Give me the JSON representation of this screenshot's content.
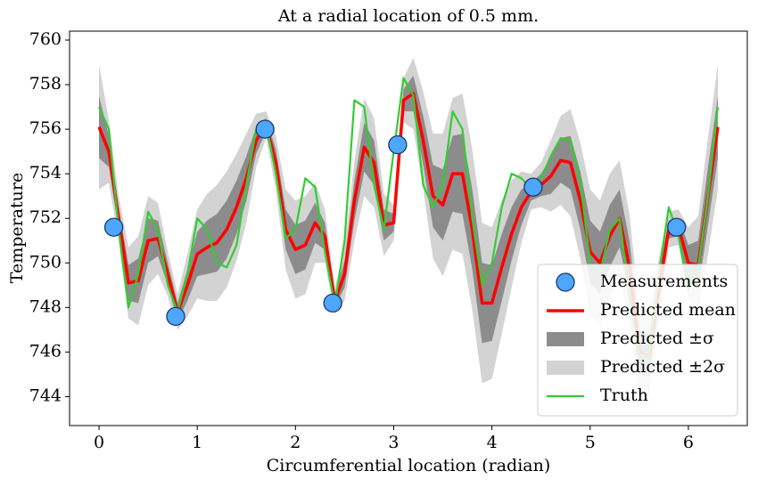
{
  "chart_data": {
    "type": "line",
    "title": "At a radial location of 0.5 mm.",
    "xlabel": "Circumferential location (radian)",
    "ylabel": "Temperature",
    "x": [
      0,
      0.1,
      0.2,
      0.3,
      0.4,
      0.5,
      0.6,
      0.7,
      0.8,
      0.9,
      1.0,
      1.1,
      1.2,
      1.3,
      1.4,
      1.5,
      1.6,
      1.7,
      1.8,
      1.9,
      2.0,
      2.1,
      2.2,
      2.3,
      2.4,
      2.5,
      2.6,
      2.7,
      2.8,
      2.9,
      3.0,
      3.1,
      3.2,
      3.3,
      3.4,
      3.5,
      3.6,
      3.7,
      3.8,
      3.9,
      4.0,
      4.1,
      4.2,
      4.3,
      4.4,
      4.5,
      4.6,
      4.7,
      4.8,
      4.9,
      5.0,
      5.1,
      5.2,
      5.3,
      5.4,
      5.5,
      5.6,
      5.7,
      5.8,
      5.9,
      6.0,
      6.1,
      6.2,
      6.3
    ],
    "series": [
      {
        "name": "Measurements",
        "kind": "scatter",
        "color": "#4da6ff",
        "x": [
          0.15,
          0.78,
          1.69,
          2.38,
          3.04,
          4.42,
          5.88
        ],
        "values": [
          751.6,
          747.6,
          756.0,
          748.2,
          755.3,
          753.4,
          751.6
        ]
      },
      {
        "name": "Predicted mean",
        "kind": "line",
        "color": "#ff0000",
        "values": [
          756.1,
          755,
          752,
          749.1,
          749.2,
          751,
          751.1,
          749.5,
          747.8,
          749,
          750.4,
          750.7,
          750.9,
          751.5,
          752.5,
          753.8,
          755.5,
          756.2,
          754.5,
          751.5,
          750.6,
          750.8,
          751.8,
          751.2,
          748.3,
          749.5,
          752.8,
          755.2,
          754.5,
          751.7,
          751.8,
          757.3,
          757.6,
          755.5,
          753,
          752.6,
          754,
          754,
          751.5,
          748.2,
          748.2,
          749.8,
          751.3,
          752.5,
          753.2,
          753.5,
          753.9,
          754.6,
          754.5,
          752.8,
          750.5,
          750,
          751.2,
          752,
          749.8,
          746,
          745.8,
          748.8,
          751.5,
          751.6,
          750,
          749.9,
          753,
          756.1
        ]
      },
      {
        "name": "Predicted ±σ",
        "kind": "band",
        "color": "#8c8c8c",
        "values": [
          1.4,
          0.7,
          0.5,
          0.8,
          1.0,
          1.0,
          0.8,
          0.5,
          0.4,
          0.7,
          1.0,
          1.2,
          1.3,
          1.3,
          1.2,
          1.0,
          0.6,
          0.3,
          0.6,
          0.9,
          1.1,
          1.1,
          0.9,
          0.6,
          0.3,
          0.6,
          0.9,
          1.1,
          1.0,
          0.7,
          0.4,
          0.5,
          0.8,
          1.1,
          1.4,
          1.6,
          1.7,
          1.8,
          1.8,
          1.8,
          1.7,
          1.5,
          1.2,
          0.8,
          0.4,
          0.5,
          0.8,
          1.0,
          1.2,
          1.3,
          1.4,
          1.4,
          1.4,
          1.3,
          1.2,
          1.0,
          0.9,
          0.7,
          0.4,
          0.4,
          0.8,
          1.1,
          1.3,
          1.4
        ]
      },
      {
        "name": "Predicted ±2σ",
        "kind": "band",
        "color": "#d3d3d3",
        "values": [
          2.8,
          1.4,
          1.0,
          1.6,
          2.0,
          2.0,
          1.6,
          1.0,
          0.8,
          1.4,
          2.0,
          2.4,
          2.6,
          2.6,
          2.4,
          2.0,
          1.2,
          0.6,
          1.2,
          1.8,
          2.2,
          2.2,
          1.8,
          1.2,
          0.6,
          1.2,
          1.8,
          2.2,
          2.0,
          1.4,
          0.8,
          1.0,
          1.6,
          2.2,
          2.8,
          3.2,
          3.4,
          3.6,
          3.6,
          3.6,
          3.4,
          3.0,
          2.4,
          1.6,
          0.8,
          1.0,
          1.6,
          2.0,
          2.4,
          2.6,
          2.8,
          2.8,
          2.8,
          2.6,
          2.4,
          2.0,
          1.8,
          1.4,
          0.8,
          0.8,
          1.6,
          2.2,
          2.6,
          2.8
        ]
      },
      {
        "name": "Truth",
        "kind": "line",
        "color": "#33cc33",
        "values": [
          757,
          756,
          751.5,
          748,
          749.5,
          752.3,
          751.5,
          749,
          747.8,
          749.5,
          752,
          751.5,
          750,
          749.8,
          750.8,
          753.5,
          756,
          756.3,
          754,
          751.1,
          751.5,
          753.8,
          753.4,
          750.5,
          748.1,
          751,
          757.3,
          757,
          753.5,
          751.5,
          755,
          758.3,
          757.5,
          753.5,
          752.5,
          753.5,
          756.8,
          756,
          752,
          749,
          750,
          752.5,
          754,
          753.8,
          753.3,
          753.8,
          754.8,
          755.6,
          755.5,
          753.7,
          750,
          749.5,
          751.5,
          752,
          748.5,
          745.9,
          745.8,
          749.5,
          752.5,
          751.2,
          748.8,
          749.8,
          753,
          757
        ]
      }
    ],
    "xlim": [
      -0.3,
      6.6
    ],
    "ylim": [
      742.7,
      760.4
    ],
    "xticks": [
      0,
      1,
      2,
      3,
      4,
      5,
      6
    ],
    "yticks": [
      744,
      746,
      748,
      750,
      752,
      754,
      756,
      758,
      760
    ],
    "legend": "lower right"
  }
}
